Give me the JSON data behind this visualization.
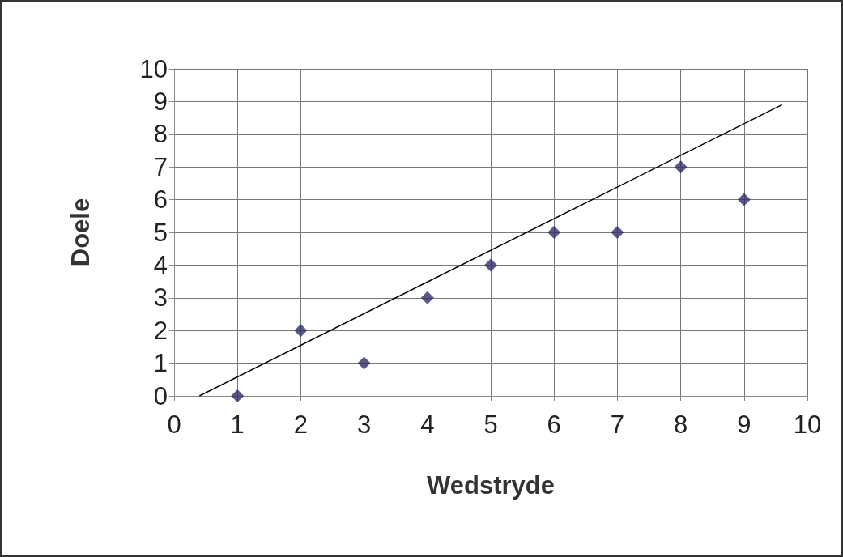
{
  "chart_data": {
    "type": "scatter",
    "xlabel": "Wedstryde",
    "ylabel": "Doele",
    "series": [
      {
        "color": "#2f2f6b",
        "marker": "diamond",
        "x": [
          1,
          2,
          3,
          4,
          5,
          6,
          7,
          8,
          9
        ],
        "values": [
          0,
          2,
          1,
          3,
          4,
          5,
          5,
          7,
          6
        ]
      },
      {
        "type": "line",
        "marker": "none",
        "color": "#000000",
        "x": [
          0.4,
          9.6
        ],
        "values": [
          0,
          8.9
        ]
      }
    ],
    "xlim": [
      0,
      10
    ],
    "xticks": [
      0,
      1,
      2,
      3,
      4,
      5,
      6,
      7,
      8,
      9,
      10
    ],
    "ylim": [
      0,
      10
    ],
    "yticks": [
      0,
      1,
      2,
      3,
      4,
      5,
      6,
      7,
      8,
      9,
      10
    ],
    "grid": true,
    "line_style": "solid"
  }
}
